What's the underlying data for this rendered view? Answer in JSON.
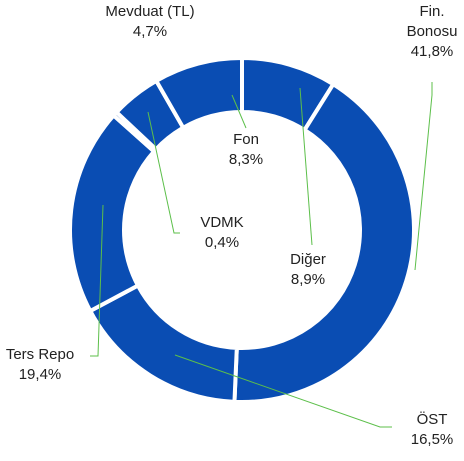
{
  "chart_data": {
    "type": "donut",
    "categories": [
      "Diğer",
      "Fin. Bonosu",
      "ÖST",
      "Ters Repo",
      "VDMK",
      "Mevduat (TL)",
      "Fon"
    ],
    "values": [
      8.9,
      41.8,
      16.5,
      19.4,
      0.4,
      4.7,
      8.3
    ],
    "value_labels": [
      "8,9%",
      "41,8%",
      "16,5%",
      "19,4%",
      "0,4%",
      "4,7%",
      "8,3%"
    ],
    "color": "#0a4db3"
  }
}
